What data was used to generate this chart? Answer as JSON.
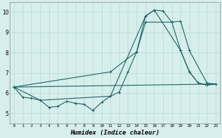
{
  "xlabel": "Humidex (Indice chaleur)",
  "xlim": [
    -0.5,
    23.5
  ],
  "ylim": [
    4.5,
    10.5
  ],
  "yticks": [
    5,
    6,
    7,
    8,
    9,
    10
  ],
  "xticks": [
    0,
    1,
    2,
    3,
    4,
    5,
    6,
    7,
    8,
    9,
    10,
    11,
    12,
    13,
    14,
    15,
    16,
    17,
    18,
    19,
    20,
    21,
    22,
    23
  ],
  "background_color": "#d6eeec",
  "grid_color": "#b8d8d4",
  "line_color": "#1a6060",
  "curves": [
    {
      "x": [
        0,
        1,
        2,
        3,
        4,
        5,
        6,
        7,
        8,
        9,
        10,
        11,
        12,
        13,
        14,
        15,
        16,
        17,
        18,
        19,
        20,
        21,
        22,
        23
      ],
      "y": [
        6.3,
        5.8,
        5.75,
        5.65,
        5.3,
        5.35,
        5.6,
        5.5,
        5.45,
        5.15,
        5.55,
        5.85,
        6.05,
        7.05,
        8.05,
        9.8,
        10.1,
        10.05,
        9.5,
        8.1,
        7.05,
        6.5,
        6.4,
        6.45
      ]
    },
    {
      "x": [
        0,
        3,
        11,
        15,
        16,
        19,
        20,
        21,
        22,
        23
      ],
      "y": [
        6.3,
        5.65,
        5.85,
        9.8,
        10.1,
        8.1,
        7.05,
        6.5,
        6.4,
        6.45
      ]
    },
    {
      "x": [
        0,
        11,
        14,
        15,
        18,
        19,
        20,
        22,
        23
      ],
      "y": [
        6.3,
        7.05,
        8.05,
        9.5,
        9.5,
        9.55,
        8.1,
        6.5,
        6.45
      ]
    },
    {
      "x": [
        0,
        23
      ],
      "y": [
        6.3,
        6.45
      ]
    }
  ]
}
